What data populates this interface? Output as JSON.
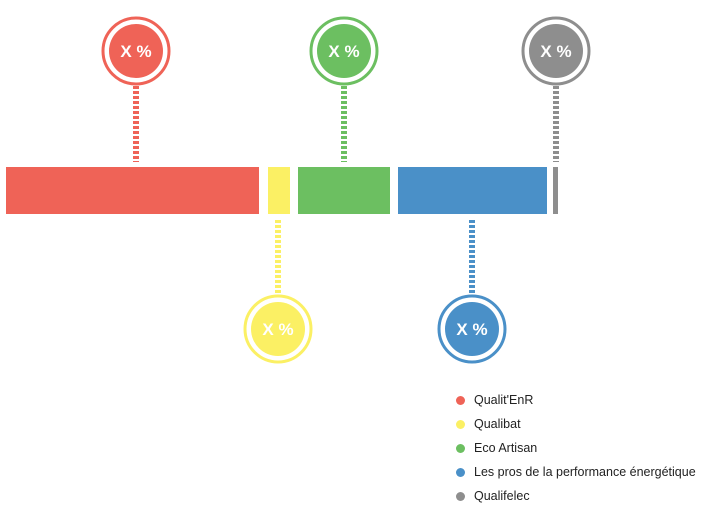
{
  "chart_data": {
    "type": "bar",
    "series": [
      {
        "name": "Qualit'EnR",
        "label": "X %",
        "color": "#ef6357",
        "callout": "top"
      },
      {
        "name": "Qualibat",
        "label": "X %",
        "color": "#fbf064",
        "callout": "bottom"
      },
      {
        "name": "Eco Artisan",
        "label": "X %",
        "color": "#6cbf61",
        "callout": "top"
      },
      {
        "name": "Les pros de la performance énergétique",
        "label": "X %",
        "color": "#4a90c8",
        "callout": "bottom"
      },
      {
        "name": "Qualifelec",
        "label": "X %",
        "color": "#8e8e8e",
        "callout": "top"
      }
    ],
    "legend": "bottom-right"
  }
}
